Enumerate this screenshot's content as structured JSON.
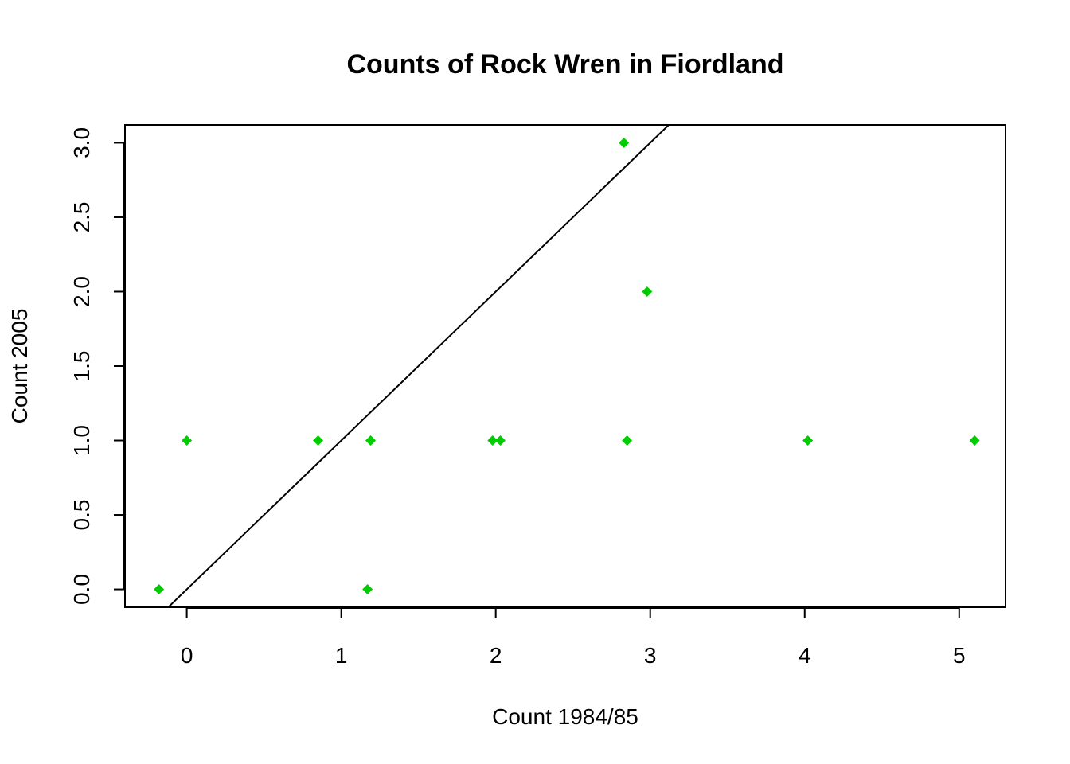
{
  "chart_data": {
    "type": "scatter",
    "title": "Counts of Rock Wren in Fiordland",
    "xlabel": "Count 1984/85",
    "ylabel": "Count 2005",
    "xlim": [
      -0.4,
      5.3
    ],
    "ylim": [
      -0.12,
      3.12
    ],
    "x_ticks": [
      "0",
      "1",
      "2",
      "3",
      "4",
      "5"
    ],
    "y_ticks": [
      "0.0",
      "0.5",
      "1.0",
      "1.5",
      "2.0",
      "2.5",
      "3.0"
    ],
    "x_tick_values": [
      0,
      1,
      2,
      3,
      4,
      5
    ],
    "y_tick_values": [
      0,
      0.5,
      1,
      1.5,
      2,
      2.5,
      3
    ],
    "grid": false,
    "legend": "none",
    "point_color": "#00CD00",
    "point_shape": "filled diamond",
    "points": [
      {
        "x": -0.18,
        "y": 0
      },
      {
        "x": 0.0,
        "y": 1
      },
      {
        "x": 0.85,
        "y": 1
      },
      {
        "x": 1.17,
        "y": 0
      },
      {
        "x": 1.19,
        "y": 1
      },
      {
        "x": 1.98,
        "y": 1
      },
      {
        "x": 2.03,
        "y": 1
      },
      {
        "x": 2.83,
        "y": 3
      },
      {
        "x": 2.85,
        "y": 1
      },
      {
        "x": 2.98,
        "y": 2
      },
      {
        "x": 4.02,
        "y": 1
      },
      {
        "x": 5.1,
        "y": 1
      }
    ],
    "reference_line": {
      "type": "abline",
      "intercept": 0,
      "slope": 1,
      "color": "#000000"
    }
  }
}
